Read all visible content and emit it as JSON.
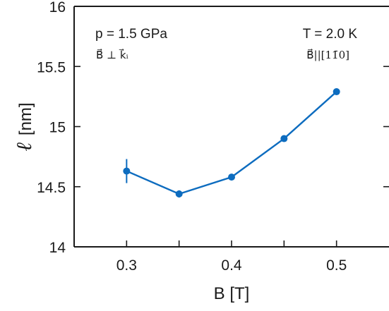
{
  "chart_data": {
    "type": "line",
    "xlabel": "B [T]",
    "ylabel": "ℓ [nm]",
    "ylabel_symbol": "ℓ",
    "ylabel_unit": "[nm]",
    "xlim": [
      0.25,
      0.55
    ],
    "ylim": [
      14,
      16
    ],
    "xticks": [
      0.3,
      0.35,
      0.4,
      0.45,
      0.5
    ],
    "xtick_labels": [
      "0.3",
      "",
      "0.4",
      "",
      "0.5"
    ],
    "yticks": [
      14,
      14.5,
      15,
      15.5,
      16
    ],
    "ytick_labels": [
      "14",
      "14.5",
      "15",
      "15.5",
      "16"
    ],
    "grid": false,
    "color": "#0d6cbf",
    "series": [
      {
        "x": [
          0.3,
          0.35,
          0.4,
          0.45,
          0.5
        ],
        "y": [
          14.63,
          14.44,
          14.58,
          14.9,
          15.29
        ],
        "yerr": [
          0.1,
          0.03,
          0.02,
          0.02,
          0.02
        ]
      }
    ],
    "annotations": {
      "pressure": "p = 1.5 GPa",
      "field_orientation": "B⃗ ⊥ k⃗ᵢ",
      "temperature": "T = 2.0 K",
      "field_direction": "B⃗||[11̄0]"
    }
  }
}
